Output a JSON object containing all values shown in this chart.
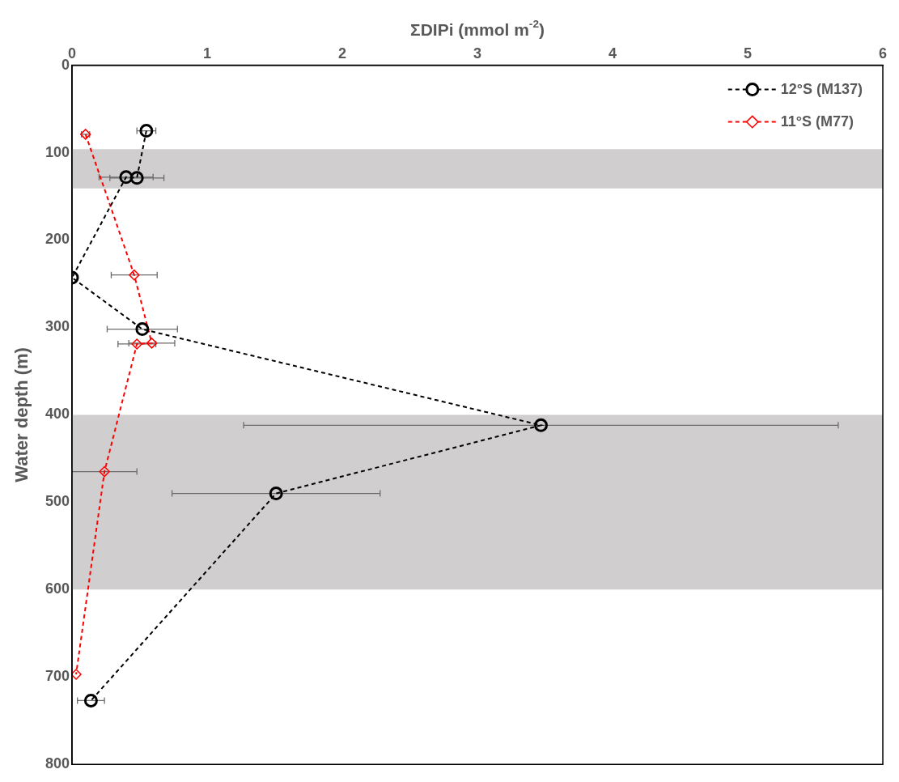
{
  "chart_data": {
    "type": "line",
    "xlabel": "ΣDIPi (mmol m$^{-2}$)",
    "ylabel": "Water depth (m)",
    "xlim": [
      0,
      6
    ],
    "xticks": [
      0,
      1,
      2,
      3,
      4,
      5,
      6
    ],
    "ylim": [
      800,
      0
    ],
    "yticks": [
      0,
      100,
      200,
      300,
      400,
      500,
      600,
      700,
      800
    ],
    "grid": false,
    "legend": "top right",
    "line_style": "dashed",
    "bands": [
      {
        "axis": "y",
        "from": 96,
        "to": 141,
        "color": "#d0cece"
      },
      {
        "axis": "y",
        "from": 400,
        "to": 600,
        "color": "#d0cece"
      }
    ],
    "series": [
      {
        "name": "12°S (M137)",
        "color": "#000000",
        "marker": "circle",
        "x": [
          0.55,
          0.48,
          0.4,
          0.0,
          0.52,
          3.47,
          1.51,
          0.14
        ],
        "values": [
          75,
          129,
          128,
          243,
          302,
          412,
          490,
          727
        ],
        "xerrors": [
          0.07,
          0.2,
          0.2,
          null,
          0.26,
          2.2,
          0.77,
          0.1
        ]
      },
      {
        "name": "11°S (M77)",
        "color": "#ff0000",
        "marker": "diamond",
        "x": [
          0.1,
          0.46,
          0.59,
          0.48,
          0.24,
          0.03
        ],
        "values": [
          79,
          240,
          318,
          319,
          465,
          697
        ],
        "xerrors": [
          0.03,
          0.17,
          0.17,
          0.14,
          0.24,
          null
        ]
      }
    ]
  }
}
